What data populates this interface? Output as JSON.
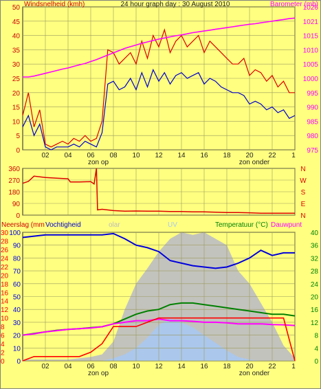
{
  "page": {
    "title": "24 hour graph day : 30 August 2010",
    "background": "#ffff80",
    "plot_background": "#ffff80",
    "grid_color": "#9a9a60"
  },
  "colors": {
    "wind": "#dd0000",
    "wind_axis": "#cc0000",
    "gust": "#dd0000",
    "barometer": "#ff00ff",
    "direction": "#dd0000",
    "vochtigheid": "#0000dd",
    "temperatuur": "#008000",
    "dauwpunt": "#ff00ff",
    "neerslag": "#ff0000",
    "solar": "#c0c0c0",
    "uv": "#a8c8f0"
  },
  "x_axis": {
    "ticks": [
      "02",
      "04",
      "06",
      "08",
      "10",
      "12",
      "14",
      "16",
      "18",
      "20",
      "22",
      "1"
    ],
    "sunrise_label": "zon op",
    "sunset_label": "zon onder"
  },
  "chart_data": [
    {
      "type": "line",
      "title": "24 hour graph day : 30 August 2010",
      "left_label": "Windsnelheid (kmh)",
      "right_label": "Barometer (mb)",
      "ylim_left": [
        0,
        50
      ],
      "yticks_left": [
        "0",
        "5",
        "10",
        "15",
        "20",
        "25",
        "30",
        "35",
        "40",
        "45",
        "50"
      ],
      "ylim_right": [
        975,
        1026
      ],
      "yticks_right": [
        "975",
        "980",
        "985",
        "990",
        "995",
        "1000",
        "1005",
        "1010",
        "1015",
        "1021",
        "1026"
      ],
      "grid": true,
      "x_hours": [
        0,
        0.5,
        1,
        1.5,
        2,
        2.5,
        3,
        3.5,
        4,
        4.5,
        5,
        5.5,
        6,
        6.5,
        7,
        7.5,
        8,
        8.5,
        9,
        9.5,
        10,
        10.5,
        11,
        11.5,
        12,
        12.5,
        13,
        13.5,
        14,
        14.5,
        15,
        15.5,
        16,
        16.5,
        17,
        17.5,
        18,
        18.5,
        19,
        19.5,
        20,
        20.5,
        21,
        21.5,
        22,
        22.5,
        23,
        23.5,
        24
      ],
      "series": [
        {
          "axis": "left",
          "color": "#dd0000",
          "values": [
            12,
            20,
            8,
            14,
            2,
            1,
            2,
            3,
            2,
            4,
            3,
            5,
            3,
            4,
            10,
            35,
            34,
            30,
            32,
            34,
            30,
            38,
            32,
            40,
            36,
            42,
            34,
            38,
            40,
            36,
            38,
            40,
            34,
            38,
            36,
            34,
            32,
            30,
            30,
            32,
            26,
            28,
            27,
            24,
            26,
            22,
            24,
            20,
            20
          ]
        },
        {
          "axis": "left",
          "color": "#0000cc",
          "values": [
            8,
            12,
            5,
            9,
            1,
            0,
            1,
            1,
            1,
            2,
            1,
            3,
            2,
            1,
            6,
            23,
            24,
            21,
            22,
            25,
            21,
            27,
            22,
            28,
            24,
            27,
            23,
            26,
            27,
            25,
            26,
            27,
            23,
            25,
            24,
            22,
            21,
            20,
            20,
            19,
            16,
            17,
            16,
            14,
            15,
            13,
            14,
            11,
            12
          ]
        },
        {
          "axis": "right",
          "color": "#ff00ff",
          "values": [
            1001,
            1001,
            1001.3,
            1001.8,
            1002.3,
            1002.8,
            1003.3,
            1003.8,
            1004.2,
            1004.8,
            1005.3,
            1005.8,
            1006.5,
            1007.2,
            1008,
            1008.8,
            1009.6,
            1010.4,
            1011.2,
            1011.8,
            1012.4,
            1013,
            1013.5,
            1014,
            1014.5,
            1014.9,
            1015.3,
            1015.7,
            1016,
            1016.4,
            1016.8,
            1017.1,
            1017.4,
            1017.7,
            1018,
            1018.3,
            1018.6,
            1018.9,
            1019.2,
            1019.5,
            1019.8,
            1020,
            1020.3,
            1020.6,
            1020.9,
            1021.2,
            1021.5,
            1021.8,
            1022
          ]
        }
      ]
    },
    {
      "type": "line",
      "ylim": [
        0,
        360
      ],
      "yticks": [
        "0",
        "90",
        "180",
        "270",
        "360"
      ],
      "right_ticks": [
        "N",
        "W",
        "S",
        "E",
        "N"
      ],
      "grid": true,
      "points": [
        [
          0,
          245
        ],
        [
          0.5,
          260
        ],
        [
          1,
          300
        ],
        [
          2,
          290
        ],
        [
          3,
          285
        ],
        [
          4,
          280
        ],
        [
          4.2,
          255
        ],
        [
          5,
          255
        ],
        [
          6,
          258
        ],
        [
          6.3,
          240
        ],
        [
          6.5,
          360
        ],
        [
          6.6,
          40
        ],
        [
          7,
          45
        ],
        [
          8,
          35
        ],
        [
          9,
          30
        ],
        [
          10,
          32
        ],
        [
          11,
          30
        ],
        [
          12,
          30
        ],
        [
          13,
          28
        ],
        [
          14,
          28
        ],
        [
          15,
          25
        ],
        [
          16,
          25
        ],
        [
          17,
          22
        ],
        [
          18,
          20
        ],
        [
          19,
          20
        ],
        [
          20,
          18
        ],
        [
          21,
          15
        ],
        [
          22,
          15
        ],
        [
          23,
          15
        ],
        [
          24,
          15
        ]
      ]
    },
    {
      "type": "line",
      "left_labels": [
        "Neerslag (mm",
        "Vochtigheid"
      ],
      "center_labels": [
        "olar",
        "UV"
      ],
      "right_labels": [
        "Temperatuur (°C)",
        "Dauwpunt"
      ],
      "ylim_neerslag": [
        0,
        30
      ],
      "yticks_neerslag": [
        "0",
        "2",
        "4",
        "6",
        "8",
        "10",
        "12",
        "14",
        "16",
        "18",
        "20",
        "22",
        "24",
        "26",
        "28",
        "30"
      ],
      "ylim_vochtigheid": [
        0,
        100
      ],
      "yticks_vochtigheid": [
        "0",
        "10",
        "20",
        "30",
        "40",
        "50",
        "60",
        "70",
        "80",
        "90",
        "100"
      ],
      "ylim_temperature": [
        0,
        40
      ],
      "yticks_temperature": [
        "0",
        "4",
        "8",
        "12",
        "16",
        "20",
        "24",
        "28",
        "32",
        "36",
        "40"
      ],
      "grid": true,
      "x_hours": [
        0,
        1,
        2,
        3,
        4,
        5,
        6,
        7,
        8,
        9,
        10,
        11,
        12,
        13,
        14,
        15,
        16,
        17,
        18,
        19,
        20,
        21,
        22,
        23,
        24
      ],
      "series": [
        {
          "axis": "vochtigheid",
          "color": "#0000dd",
          "values": [
            96,
            97,
            98,
            98,
            98,
            98,
            98,
            98,
            99,
            95,
            90,
            88,
            85,
            78,
            76,
            74,
            73,
            72,
            73,
            76,
            80,
            86,
            82,
            84,
            84
          ]
        },
        {
          "axis": "temperatuur",
          "color": "#008000",
          "values": [
            8,
            8.5,
            9,
            9.5,
            9.8,
            10,
            10.3,
            10.6,
            11.5,
            13,
            14.5,
            15.5,
            16,
            17.5,
            18,
            18,
            17.5,
            17,
            16.5,
            16,
            15.5,
            15,
            14.5,
            14.5,
            14
          ]
        },
        {
          "axis": "temperatuur",
          "color": "#ff00ff",
          "values": [
            8,
            8.4,
            9,
            9.4,
            9.8,
            10,
            10.2,
            10.6,
            11.5,
            12,
            12.5,
            12.5,
            13,
            12.5,
            12.5,
            12.3,
            12,
            12,
            11.8,
            11.5,
            11.5,
            11.5,
            11.3,
            11.2,
            11
          ]
        },
        {
          "axis": "neerslag",
          "color": "#ff0000",
          "values": [
            0,
            1,
            1,
            1,
            1,
            1,
            2,
            4,
            8,
            8,
            8,
            9,
            10,
            10,
            10,
            10,
            10,
            10,
            10,
            10,
            10,
            10,
            10,
            10,
            0
          ]
        },
        {
          "axis": "vochtigheid",
          "color": "#c0c0c0",
          "values": [
            1,
            1,
            1,
            1,
            1,
            2,
            3,
            5,
            15,
            40,
            60,
            72,
            85,
            95,
            100,
            98,
            100,
            95,
            90,
            70,
            60,
            45,
            30,
            12,
            2
          ]
        },
        {
          "axis": "vochtigheid",
          "color": "#a8c8f0",
          "values": [
            0,
            0,
            0,
            0,
            0,
            0,
            0,
            0,
            2,
            5,
            10,
            18,
            28,
            33,
            30,
            26,
            20,
            14,
            8,
            3,
            1,
            0,
            0,
            0,
            0
          ]
        }
      ]
    }
  ]
}
